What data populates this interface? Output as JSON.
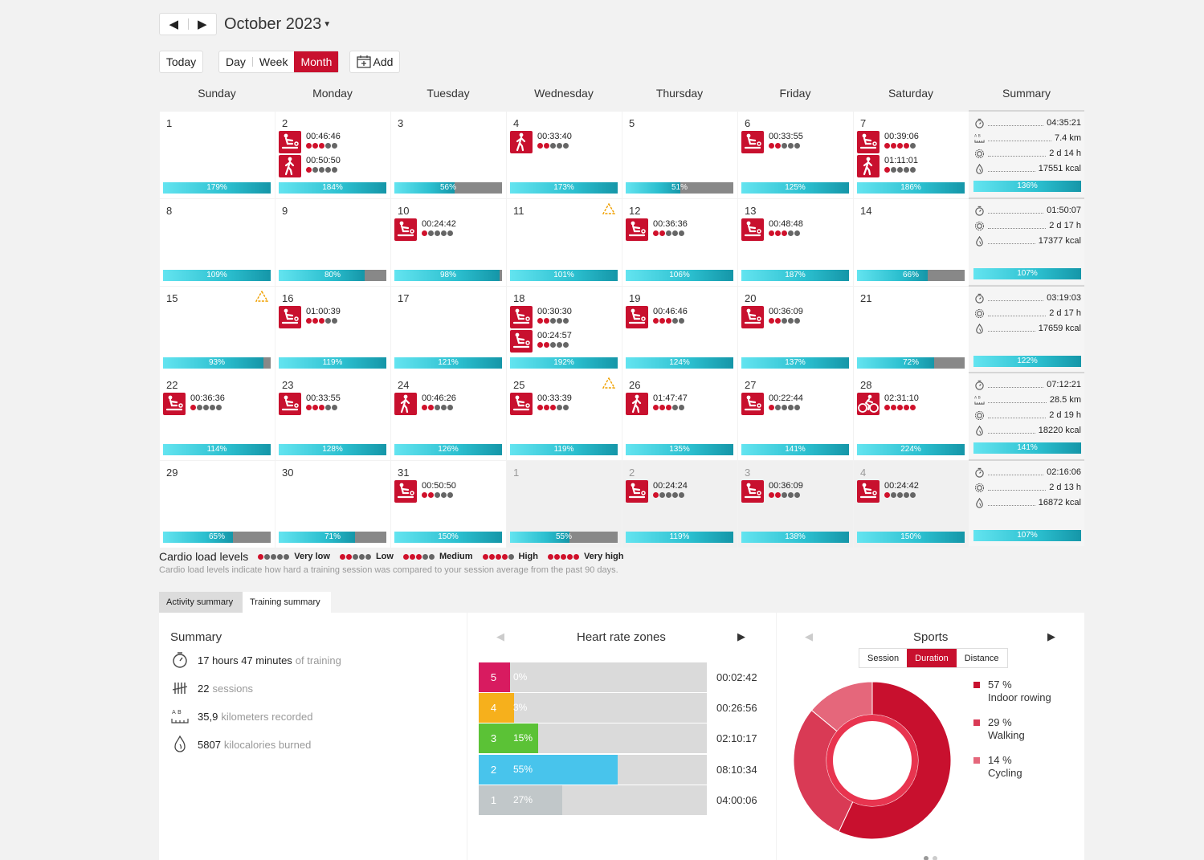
{
  "header": {
    "title": "October 2023",
    "prev": "◀",
    "next": "▶"
  },
  "toolbar": {
    "today": "Today",
    "day": "Day",
    "week": "Week",
    "month": "Month",
    "add": "Add"
  },
  "weekdays": [
    "Sunday",
    "Monday",
    "Tuesday",
    "Wednesday",
    "Thursday",
    "Friday",
    "Saturday",
    "Summary"
  ],
  "weeks": [
    {
      "days": [
        {
          "date": "1",
          "pct": 179,
          "label": "179%",
          "acts": []
        },
        {
          "date": "2",
          "pct": 184,
          "label": "184%",
          "acts": [
            {
              "sport": "row",
              "time": "00:46:46",
              "level": 3
            },
            {
              "sport": "walk",
              "time": "00:50:50",
              "level": 1
            }
          ]
        },
        {
          "date": "3",
          "pct": 56,
          "label": "56%",
          "acts": []
        },
        {
          "date": "4",
          "pct": 173,
          "label": "173%",
          "acts": [
            {
              "sport": "walk",
              "time": "00:33:40",
              "level": 2
            }
          ]
        },
        {
          "date": "5",
          "pct": 51,
          "label": "51%",
          "acts": []
        },
        {
          "date": "6",
          "pct": 125,
          "label": "125%",
          "acts": [
            {
              "sport": "row",
              "time": "00:33:55",
              "level": 2
            }
          ]
        },
        {
          "date": "7",
          "pct": 186,
          "label": "186%",
          "acts": [
            {
              "sport": "row",
              "time": "00:39:06",
              "level": 4
            },
            {
              "sport": "walk",
              "time": "01:11:01",
              "level": 1
            }
          ]
        }
      ],
      "summary": {
        "label": "136%",
        "pct": 136,
        "rows": [
          {
            "icon": "stopwatch",
            "value": "04:35:21"
          },
          {
            "icon": "distance",
            "value": "7.4 km"
          },
          {
            "icon": "recovery",
            "value": "2 d 14 h"
          },
          {
            "icon": "calories",
            "value": "17551 kcal"
          }
        ]
      }
    },
    {
      "days": [
        {
          "date": "8",
          "pct": 109,
          "label": "109%",
          "acts": []
        },
        {
          "date": "9",
          "pct": 80,
          "label": "80%",
          "acts": []
        },
        {
          "date": "10",
          "pct": 98,
          "label": "98%",
          "acts": [
            {
              "sport": "row",
              "time": "00:24:42",
              "level": 1
            }
          ]
        },
        {
          "date": "11",
          "pct": 101,
          "label": "101%",
          "warn": true,
          "acts": []
        },
        {
          "date": "12",
          "pct": 106,
          "label": "106%",
          "acts": [
            {
              "sport": "row",
              "time": "00:36:36",
              "level": 2
            }
          ]
        },
        {
          "date": "13",
          "pct": 187,
          "label": "187%",
          "acts": [
            {
              "sport": "row",
              "time": "00:48:48",
              "level": 3
            }
          ]
        },
        {
          "date": "14",
          "pct": 66,
          "label": "66%",
          "acts": []
        }
      ],
      "summary": {
        "label": "107%",
        "pct": 107,
        "rows": [
          {
            "icon": "stopwatch",
            "value": "01:50:07"
          },
          {
            "icon": "recovery",
            "value": "2 d 17 h"
          },
          {
            "icon": "calories",
            "value": "17377 kcal"
          }
        ]
      }
    },
    {
      "days": [
        {
          "date": "15",
          "pct": 93,
          "label": "93%",
          "warn": true,
          "acts": []
        },
        {
          "date": "16",
          "pct": 119,
          "label": "119%",
          "acts": [
            {
              "sport": "row",
              "time": "01:00:39",
              "level": 3
            }
          ]
        },
        {
          "date": "17",
          "pct": 121,
          "label": "121%",
          "acts": []
        },
        {
          "date": "18",
          "pct": 192,
          "label": "192%",
          "acts": [
            {
              "sport": "row",
              "time": "00:30:30",
              "level": 2
            },
            {
              "sport": "row",
              "time": "00:24:57",
              "level": 2
            }
          ]
        },
        {
          "date": "19",
          "pct": 124,
          "label": "124%",
          "acts": [
            {
              "sport": "row",
              "time": "00:46:46",
              "level": 3
            }
          ]
        },
        {
          "date": "20",
          "pct": 137,
          "label": "137%",
          "acts": [
            {
              "sport": "row",
              "time": "00:36:09",
              "level": 2
            }
          ]
        },
        {
          "date": "21",
          "pct": 72,
          "label": "72%",
          "acts": []
        }
      ],
      "summary": {
        "label": "122%",
        "pct": 122,
        "rows": [
          {
            "icon": "stopwatch",
            "value": "03:19:03"
          },
          {
            "icon": "recovery",
            "value": "2 d 17 h"
          },
          {
            "icon": "calories",
            "value": "17659 kcal"
          }
        ]
      }
    },
    {
      "days": [
        {
          "date": "22",
          "pct": 114,
          "label": "114%",
          "acts": [
            {
              "sport": "row",
              "time": "00:36:36",
              "level": 1
            }
          ]
        },
        {
          "date": "23",
          "pct": 128,
          "label": "128%",
          "acts": [
            {
              "sport": "row",
              "time": "00:33:55",
              "level": 3
            }
          ]
        },
        {
          "date": "24",
          "pct": 126,
          "label": "126%",
          "acts": [
            {
              "sport": "walk",
              "time": "00:46:26",
              "level": 2
            }
          ]
        },
        {
          "date": "25",
          "pct": 119,
          "label": "119%",
          "warn": true,
          "acts": [
            {
              "sport": "row",
              "time": "00:33:39",
              "level": 3
            }
          ]
        },
        {
          "date": "26",
          "pct": 135,
          "label": "135%",
          "acts": [
            {
              "sport": "walk",
              "time": "01:47:47",
              "level": 3
            }
          ]
        },
        {
          "date": "27",
          "pct": 141,
          "label": "141%",
          "acts": [
            {
              "sport": "row",
              "time": "00:22:44",
              "level": 1
            }
          ]
        },
        {
          "date": "28",
          "pct": 224,
          "label": "224%",
          "acts": [
            {
              "sport": "cycle",
              "time": "02:31:10",
              "level": 5
            }
          ]
        }
      ],
      "summary": {
        "label": "141%",
        "pct": 141,
        "rows": [
          {
            "icon": "stopwatch",
            "value": "07:12:21"
          },
          {
            "icon": "distance",
            "value": "28.5 km"
          },
          {
            "icon": "recovery",
            "value": "2 d 19 h"
          },
          {
            "icon": "calories",
            "value": "18220 kcal"
          }
        ]
      }
    },
    {
      "days": [
        {
          "date": "29",
          "pct": 65,
          "label": "65%",
          "acts": []
        },
        {
          "date": "30",
          "pct": 71,
          "label": "71%",
          "acts": []
        },
        {
          "date": "31",
          "pct": 150,
          "label": "150%",
          "acts": [
            {
              "sport": "row",
              "time": "00:50:50",
              "level": 2
            }
          ]
        },
        {
          "date": "1",
          "pct": 55,
          "label": "55%",
          "other": true,
          "acts": []
        },
        {
          "date": "2",
          "pct": 119,
          "label": "119%",
          "other": true,
          "acts": [
            {
              "sport": "row",
              "time": "00:24:24",
              "level": 1
            }
          ]
        },
        {
          "date": "3",
          "pct": 138,
          "label": "138%",
          "other": true,
          "acts": [
            {
              "sport": "row",
              "time": "00:36:09",
              "level": 2
            }
          ]
        },
        {
          "date": "4",
          "pct": 150,
          "label": "150%",
          "other": true,
          "acts": [
            {
              "sport": "row",
              "time": "00:24:42",
              "level": 1
            }
          ]
        }
      ],
      "summary": {
        "label": "107%",
        "pct": 107,
        "rows": [
          {
            "icon": "stopwatch",
            "value": "02:16:06"
          },
          {
            "icon": "recovery",
            "value": "2 d 13 h"
          },
          {
            "icon": "calories",
            "value": "16872 kcal"
          }
        ]
      }
    }
  ],
  "legend": {
    "title": "Cardio load levels",
    "levels": [
      {
        "name": "Very low",
        "level": 1
      },
      {
        "name": "Low",
        "level": 2
      },
      {
        "name": "Medium",
        "level": 3
      },
      {
        "name": "High",
        "level": 4
      },
      {
        "name": "Very high",
        "level": 5
      }
    ],
    "note": "Cardio load levels indicate how hard a training session was compared to your session average from the past 90 days."
  },
  "tabs": {
    "activity": "Activity summary",
    "training": "Training summary"
  },
  "summary_panel": {
    "title": "Summary",
    "lines": [
      {
        "icon": "stopwatch-icon",
        "value": "17 hours 47 minutes",
        "suffix": "of training"
      },
      {
        "icon": "tally-icon",
        "value": "22",
        "suffix": "sessions"
      },
      {
        "icon": "distance-icon",
        "value": "35,9",
        "suffix": "kilometers recorded"
      },
      {
        "icon": "flame-icon",
        "value": "5807",
        "suffix": "kilocalories burned"
      }
    ]
  },
  "hr_panel": {
    "title": "Heart rate zones",
    "prev": "◀",
    "next": "▶",
    "zones": [
      {
        "zone": "5",
        "pct": 0,
        "label": "0%",
        "time": "00:02:42",
        "color": "#d81b60"
      },
      {
        "zone": "4",
        "pct": 3,
        "label": "3%",
        "time": "00:26:56",
        "color": "#f6b01c"
      },
      {
        "zone": "3",
        "pct": 15,
        "label": "15%",
        "time": "02:10:17",
        "color": "#5bc236"
      },
      {
        "zone": "2",
        "pct": 55,
        "label": "55%",
        "time": "08:10:34",
        "color": "#48c4ec"
      },
      {
        "zone": "1",
        "pct": 27,
        "label": "27%",
        "time": "04:00:06",
        "color": "#c1c7c9"
      }
    ]
  },
  "sports_panel": {
    "title": "Sports",
    "prev": "◀",
    "next": "▶",
    "segments": [
      "Session",
      "Duration",
      "Distance"
    ],
    "active_segment": "Duration",
    "items": [
      {
        "pct_label": "57 %",
        "name": "Indoor rowing",
        "value": 57,
        "color": "#c8102e"
      },
      {
        "pct_label": "29 %",
        "name": "Walking",
        "value": 29,
        "color": "#d93a55"
      },
      {
        "pct_label": "14 %",
        "name": "Cycling",
        "value": 14,
        "color": "#e5677b"
      }
    ]
  },
  "colors": {
    "accent": "#c8102e",
    "dotActive": "#d0112b",
    "dotInactive": "#666666",
    "barTeal": "#2bbfcf"
  }
}
